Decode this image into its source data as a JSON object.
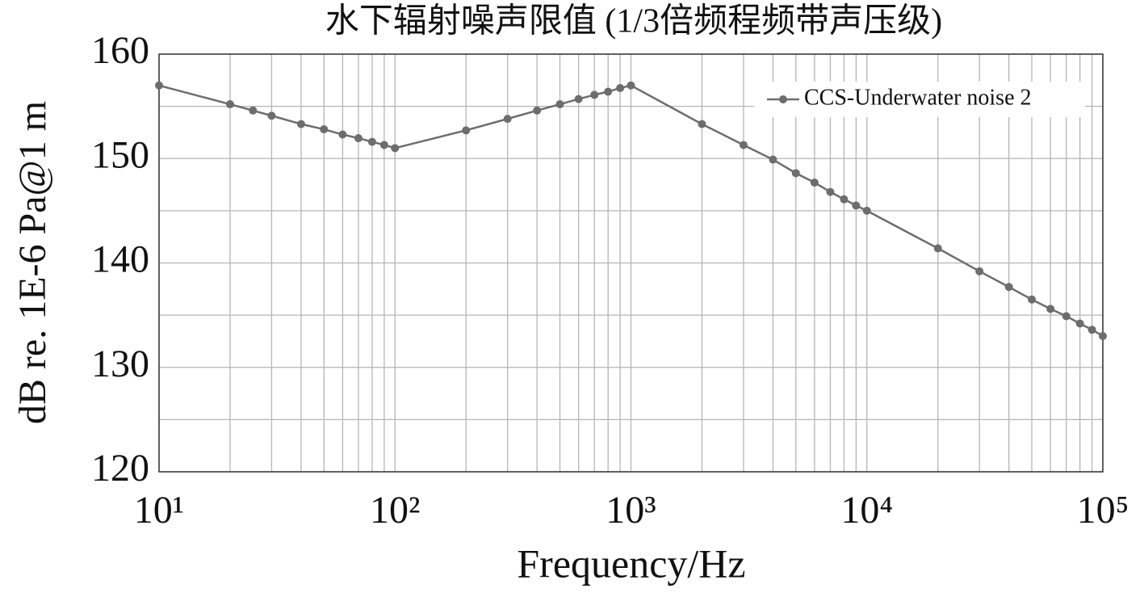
{
  "chart_data": {
    "type": "line",
    "title": "水下辐射噪声限值 (1/3倍频程频带声压级)",
    "x_label": "Frequency/Hz",
    "y_label": "dB re. 1E-6 Pa@1 m",
    "x": [
      10,
      20,
      25,
      30,
      40,
      50,
      60,
      70,
      80,
      90,
      100,
      200,
      300,
      400,
      500,
      600,
      700,
      800,
      900,
      1000,
      2000,
      3000,
      4000,
      5000,
      6000,
      7000,
      8000,
      9000,
      10000,
      20000,
      30000,
      40000,
      50000,
      60000,
      70000,
      80000,
      90000,
      100000
    ],
    "series": [
      {
        "name": "CCS-Underwater noise 2",
        "color": "#6d6d6d",
        "values": [
          157.0,
          155.2,
          154.6,
          154.1,
          153.3,
          152.8,
          152.3,
          151.95,
          151.6,
          151.3,
          151.0,
          152.7,
          153.8,
          154.6,
          155.2,
          155.7,
          156.1,
          156.4,
          156.75,
          157.0,
          153.3,
          151.3,
          149.9,
          148.6,
          147.7,
          146.8,
          146.1,
          145.5,
          145.0,
          141.4,
          139.2,
          137.7,
          136.5,
          135.6,
          134.9,
          134.2,
          133.6,
          133.0
        ]
      }
    ],
    "x_log": true,
    "xlim": [
      10,
      100000
    ],
    "xticks": [
      {
        "value": 10,
        "label": "10¹"
      },
      {
        "value": 100,
        "label": "10²"
      },
      {
        "value": 1000,
        "label": "10³"
      },
      {
        "value": 10000,
        "label": "10⁴"
      },
      {
        "value": 100000,
        "label": "10⁵"
      }
    ],
    "ylim": [
      120,
      160
    ],
    "yticks": [
      120,
      130,
      140,
      150,
      160
    ],
    "grid": true,
    "minor_grid": true,
    "legend": "top-right"
  }
}
